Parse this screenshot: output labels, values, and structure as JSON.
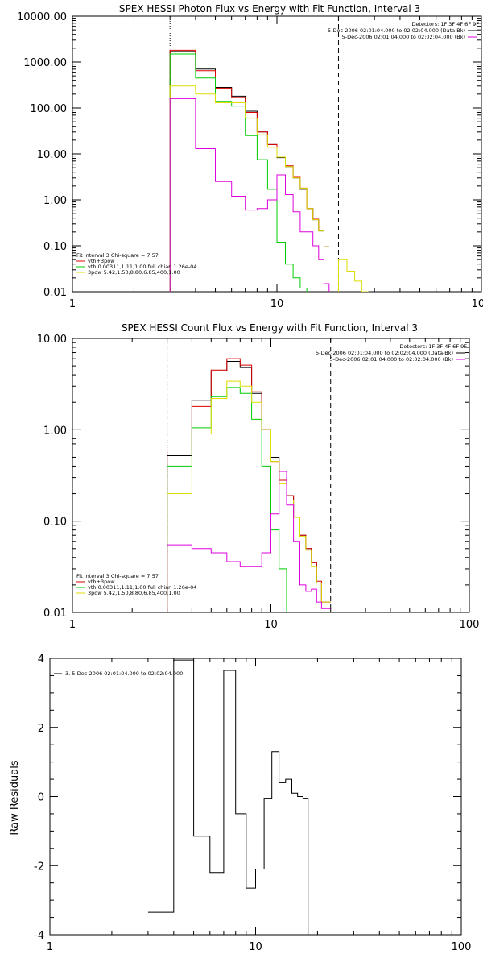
{
  "chart_data": [
    {
      "type": "line",
      "title": "SPEX HESSI Photon Flux vs Energy with Fit Function, Interval 3",
      "xscale": "log",
      "yscale": "log",
      "xlim": [
        1,
        100
      ],
      "ylim": [
        0.01,
        10000
      ],
      "xticks": [
        "1",
        "10",
        "100"
      ],
      "yticks": [
        "10000.00",
        "1000.00",
        "100.00",
        "10.00",
        "1.00",
        "0.10",
        "0.01"
      ],
      "vlines": [
        {
          "x": 3,
          "style": "dotted"
        },
        {
          "x": 20,
          "style": "dashed"
        }
      ],
      "legend_right": [
        "Detectors: 1F 3F 4F 6F 9F",
        "5-Dec-2006 02:01:04.000 to 02:02:04.000 (Data-Bk)",
        "5-Dec-2006 02:01:04.000 to 02:02:04.000 (Bk)"
      ],
      "legend_left": [
        "Fit Interval 3    Chi-square = 7.57",
        "vth+3pow",
        "vth 0.00311,1.11,1.00  full chian 1.26e-04",
        "3pow 5.42,1.50,8.80,6.85,400,1.00"
      ],
      "series": [
        {
          "color": "#000000",
          "edges": [
            3,
            4,
            5,
            6,
            7,
            8,
            9,
            10,
            11,
            12,
            13,
            14,
            15,
            16,
            17,
            18,
            20,
            22,
            24,
            26,
            28
          ],
          "values": [
            1700,
            700,
            280,
            180,
            85,
            30,
            16,
            8.3,
            5.3,
            3.0,
            1.7,
            0.65,
            0.37,
            0.21,
            0.095,
            null,
            null,
            null,
            null,
            null
          ]
        },
        {
          "color": "#dd0000",
          "edges": [
            3,
            4,
            5,
            6,
            7,
            8,
            9,
            10,
            11,
            12,
            13,
            14,
            15,
            16,
            17,
            18,
            20
          ],
          "values": [
            1800,
            650,
            270,
            170,
            80,
            30,
            16,
            8.5,
            5.5,
            3.1,
            1.8,
            0.65,
            0.38,
            0.22,
            0.095,
            null
          ]
        },
        {
          "color": "#00cc00",
          "edges": [
            3,
            4,
            5,
            6,
            7,
            8,
            9,
            10,
            11,
            12,
            13,
            14,
            15
          ],
          "values": [
            1500,
            450,
            140,
            110,
            25,
            7.5,
            1.7,
            0.12,
            0.04,
            0.02,
            0.012,
            0.005
          ]
        },
        {
          "color": "#dddd00",
          "edges": [
            3,
            4,
            5,
            6,
            7,
            8,
            9,
            10,
            11,
            12,
            13,
            14,
            15,
            16,
            17,
            18,
            20,
            22,
            24,
            26,
            28
          ],
          "values": [
            300,
            200,
            130,
            130,
            60,
            26,
            14,
            8.5,
            5.3,
            3.0,
            1.8,
            0.65,
            0.37,
            0.21,
            0.095,
            null,
            0.05,
            0.028,
            0.017,
            0.01
          ]
        },
        {
          "color": "#dd00dd",
          "edges": [
            3,
            4,
            5,
            6,
            7,
            8,
            9,
            10,
            11,
            12,
            13,
            14,
            15,
            16,
            17,
            18,
            20
          ],
          "values": [
            160,
            13,
            2.5,
            1.2,
            0.6,
            0.65,
            1.0,
            3.5,
            1.3,
            0.55,
            0.2,
            0.2,
            0.1,
            0.05,
            0.015,
            0.005
          ]
        }
      ]
    },
    {
      "type": "line",
      "title": "SPEX HESSI Count Flux vs Energy with Fit Function, Interval 3",
      "xscale": "log",
      "yscale": "log",
      "xlim": [
        1,
        100
      ],
      "ylim": [
        0.01,
        10
      ],
      "xticks": [
        "1",
        "10",
        "100"
      ],
      "yticks": [
        "10.00",
        "1.00",
        "0.10",
        "0.01"
      ],
      "vlines": [
        {
          "x": 3,
          "style": "dotted"
        },
        {
          "x": 20,
          "style": "dashed"
        }
      ],
      "legend_right": [
        "Detectors: 1F 3F 4F 6F 9F",
        "5-Dec-2006 02:01:04.000 to 02:02:04.000 (Data-Bk)",
        "5-Dec-2006 02:01:04.000 to 02:02:04.000 (Bk)"
      ],
      "legend_left": [
        "Fit Interval 3    Chi-square = 7.57",
        "vth+3pow",
        "vth 0.00311,1.11,1.00  full chian 1.26e-04",
        "3pow 5.42,1.50,8.80,6.85,400,1.00"
      ],
      "series": [
        {
          "color": "#000000",
          "edges": [
            3,
            4,
            5,
            6,
            7,
            8,
            9,
            10,
            11,
            12,
            13,
            14,
            15,
            16,
            17,
            18,
            20
          ],
          "values": [
            0.52,
            2.1,
            4.4,
            5.6,
            4.8,
            2.5,
            1.0,
            0.5,
            0.28,
            0.19,
            0.11,
            0.07,
            0.05,
            0.035,
            0.021,
            0.013
          ]
        },
        {
          "color": "#dd0000",
          "edges": [
            3,
            4,
            5,
            6,
            7,
            8,
            9,
            10,
            11,
            12,
            13,
            14,
            15,
            16,
            17,
            18,
            20
          ],
          "values": [
            0.6,
            1.8,
            4.5,
            6.0,
            5.1,
            2.6,
            1.0,
            0.45,
            0.28,
            0.19,
            0.11,
            0.07,
            0.05,
            0.035,
            0.022,
            0.013
          ]
        },
        {
          "color": "#00cc00",
          "edges": [
            3,
            4,
            5,
            6,
            7,
            8,
            9,
            10,
            11,
            12,
            13
          ],
          "values": [
            0.4,
            1.05,
            2.3,
            2.9,
            2.5,
            1.3,
            0.4,
            0.08,
            0.03,
            0.01
          ]
        },
        {
          "color": "#dddd00",
          "edges": [
            3,
            4,
            5,
            6,
            7,
            8,
            9,
            10,
            11,
            12,
            13,
            14,
            15,
            16,
            17,
            18,
            20
          ],
          "values": [
            0.2,
            0.9,
            2.2,
            3.4,
            3.0,
            2.0,
            1.0,
            0.45,
            0.26,
            0.17,
            0.11,
            0.068,
            0.048,
            0.032,
            0.021,
            0.013
          ]
        },
        {
          "color": "#dd00dd",
          "edges": [
            3,
            4,
            5,
            6,
            7,
            8,
            9,
            10,
            11,
            12,
            13,
            14,
            15,
            16,
            17,
            18,
            20
          ],
          "values": [
            0.055,
            0.05,
            0.045,
            0.036,
            0.032,
            0.032,
            0.045,
            0.12,
            0.35,
            0.15,
            0.06,
            0.02,
            0.017,
            0.018,
            0.013,
            0.011
          ]
        }
      ]
    },
    {
      "type": "line",
      "title": "",
      "xscale": "log",
      "yscale": "linear",
      "xlim": [
        1,
        100
      ],
      "ylim": [
        -4,
        4
      ],
      "xticks": [
        "1",
        "10",
        "100"
      ],
      "yticks": [
        "4",
        "2",
        "0",
        "-2",
        "-4"
      ],
      "ylabel": "Raw Residuals",
      "legend_left": [
        "3. 5-Dec-2006 02:01:04.000 to 02:02:04.000"
      ],
      "series": [
        {
          "color": "#000000",
          "edges": [
            3,
            4,
            5,
            6,
            7,
            8,
            9,
            10,
            11,
            12,
            13,
            14,
            15,
            16,
            17,
            18,
            20
          ],
          "values": [
            -3.35,
            3.95,
            -1.15,
            -2.2,
            3.65,
            -0.5,
            -2.65,
            -2.1,
            -0.05,
            1.3,
            0.4,
            0.5,
            0.1,
            0.0,
            -0.05,
            -4.2
          ]
        }
      ]
    }
  ]
}
